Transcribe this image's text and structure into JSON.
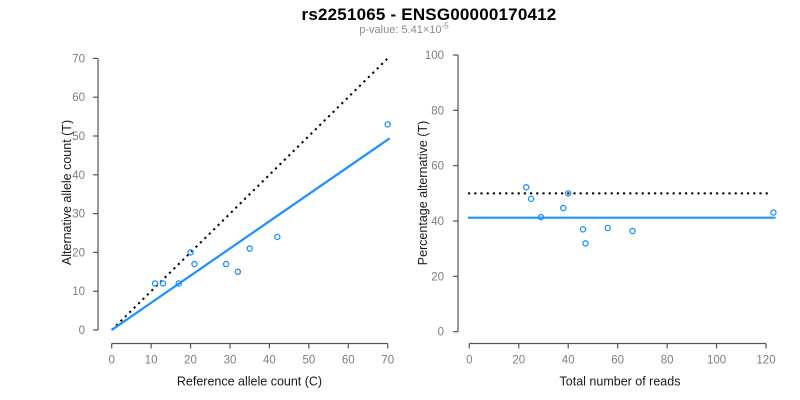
{
  "header": {
    "title": "rs2251065 - ENSG00000170412",
    "pvalue": {
      "label": "p-value:",
      "mantissa": "5.41",
      "times": "×",
      "base": "10",
      "exponent": "-5"
    }
  },
  "colors": {
    "background": "#ffffff",
    "accent_blue": "#1E90FF",
    "dotted_line": "#000000",
    "axis_line": "#555555",
    "tick_label": "#7d7d7d",
    "axis_title": "#1a1a1a",
    "title": "#000000",
    "subtitle": "#8c8c8c"
  },
  "chart_data": {
    "figure_title": "rs2251065 - ENSG00000170412",
    "figure_subtitle": "p-value: 5.41×10^-5",
    "panels": [
      {
        "type": "scatter",
        "panel": "left",
        "xlabel": "Reference allele count (C)",
        "ylabel": "Alternative allele count (T)",
        "xlim": [
          0,
          70
        ],
        "ylim": [
          0,
          70
        ],
        "xticks": [
          0,
          10,
          20,
          30,
          40,
          50,
          60,
          70
        ],
        "yticks": [
          0,
          10,
          20,
          30,
          40,
          50,
          60,
          70
        ],
        "grid": false,
        "points": [
          [
            11,
            12
          ],
          [
            13,
            12
          ],
          [
            17,
            12
          ],
          [
            20,
            20
          ],
          [
            21,
            17
          ],
          [
            29,
            17
          ],
          [
            32,
            15
          ],
          [
            35,
            21
          ],
          [
            42,
            24
          ],
          [
            70,
            53
          ]
        ],
        "lines": [
          {
            "name": "identity-line",
            "style": "dotted",
            "from": [
              0,
              0
            ],
            "to": [
              70.3,
              70.3
            ],
            "meaning": "y = x (50% line)"
          },
          {
            "name": "fit-line",
            "style": "solid",
            "from": [
              0,
              0
            ],
            "to": [
              70.5,
              49.4
            ],
            "slope": 0.7,
            "meaning": "regression fit"
          }
        ]
      },
      {
        "type": "scatter",
        "panel": "right",
        "xlabel": "Total number of reads",
        "ylabel": "Percentage alternative (T)",
        "xlim": [
          0,
          120
        ],
        "ylim": [
          0,
          100
        ],
        "xticks": [
          0,
          20,
          40,
          60,
          80,
          100,
          120
        ],
        "yticks": [
          0,
          20,
          40,
          60,
          80,
          100
        ],
        "grid": false,
        "points": [
          [
            23,
            52.2
          ],
          [
            25,
            48.0
          ],
          [
            29,
            41.4
          ],
          [
            38,
            44.7
          ],
          [
            40,
            50.0
          ],
          [
            46,
            37.0
          ],
          [
            47,
            31.9
          ],
          [
            56,
            37.5
          ],
          [
            66,
            36.4
          ],
          [
            123,
            43.1
          ]
        ],
        "lines": [
          {
            "name": "reference-line",
            "style": "dotted",
            "y": 50,
            "meaning": "50% reference"
          },
          {
            "name": "mean-line",
            "style": "solid",
            "y": 41.2,
            "meaning": "mean alternative percentage"
          }
        ]
      }
    ]
  }
}
